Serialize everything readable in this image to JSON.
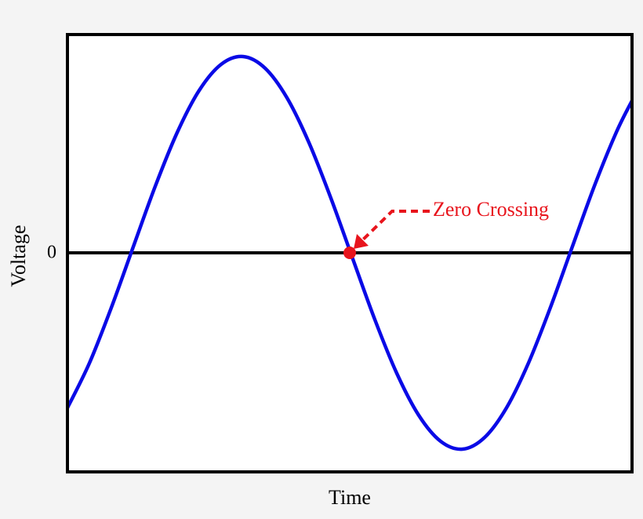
{
  "chart_data": {
    "type": "line",
    "x_label": "Time",
    "y_label": "Voltage",
    "xlim": [
      0,
      1.286
    ],
    "ylim": [
      -1.116,
      1.112
    ],
    "yticks": [
      0
    ],
    "x": [
      0,
      0.05,
      0.1,
      0.15,
      0.2,
      0.25,
      0.3,
      0.35,
      0.4,
      0.45,
      0.5,
      0.55,
      0.6,
      0.65,
      0.7,
      0.75,
      0.8,
      0.85,
      0.9,
      0.95,
      1.0,
      1.05,
      1.1,
      1.15,
      1.2,
      1.25,
      1.286
    ],
    "series": [
      {
        "color": "#0a0ae6",
        "values": [
          -0.79,
          -0.562,
          -0.279,
          0.031,
          0.339,
          0.613,
          0.827,
          0.96,
          1.0,
          0.941,
          0.79,
          0.562,
          0.279,
          -0.031,
          -0.339,
          -0.613,
          -0.827,
          -0.96,
          -1.0,
          -0.941,
          -0.79,
          -0.562,
          -0.279,
          0.031,
          0.339,
          0.613,
          0.775
        ]
      }
    ],
    "annotation": {
      "text": "Zero Crossing",
      "x": 0.643,
      "y": 0,
      "color": "#e8141c"
    }
  }
}
